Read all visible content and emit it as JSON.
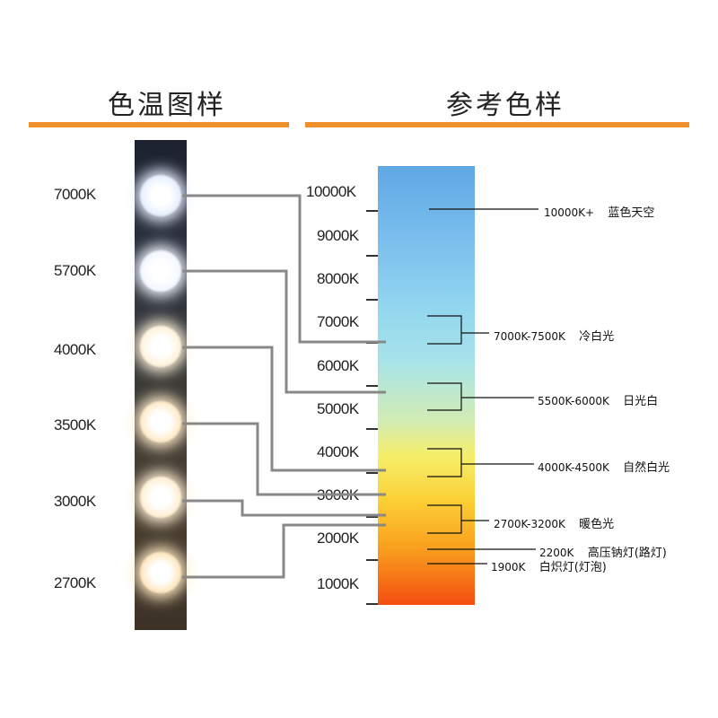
{
  "headers": {
    "left": "色温图样",
    "right": "参考色样"
  },
  "colors": {
    "accent": "#f0902a",
    "connector": "#888888"
  },
  "leds": [
    {
      "label": "7000K",
      "color": "#e9f1ff"
    },
    {
      "label": "5700K",
      "color": "#f3f7ff"
    },
    {
      "label": "4000K",
      "color": "#fff3dd"
    },
    {
      "label": "3500K",
      "color": "#ffeccc"
    },
    {
      "label": "3000K",
      "color": "#fff0d6"
    },
    {
      "label": "2700K",
      "color": "#ffe9c4"
    }
  ],
  "scale_labels": [
    "10000K",
    "9000K",
    "8000K",
    "7000K",
    "6000K",
    "5000K",
    "4000K",
    "3000K",
    "2000K",
    "1000K"
  ],
  "annotations": [
    {
      "range": "10000K+",
      "name": "蓝色天空"
    },
    {
      "range": "7000K-7500K",
      "name": "冷白光"
    },
    {
      "range": "5500K-6000K",
      "name": "日光白"
    },
    {
      "range": "4000K-4500K",
      "name": "自然白光"
    },
    {
      "range": "2700K-3200K",
      "name": "暖色光"
    },
    {
      "range": "2200K",
      "name": "高压钠灯(路灯)"
    },
    {
      "range": "1900K",
      "name": "白炽灯(灯泡)"
    }
  ]
}
